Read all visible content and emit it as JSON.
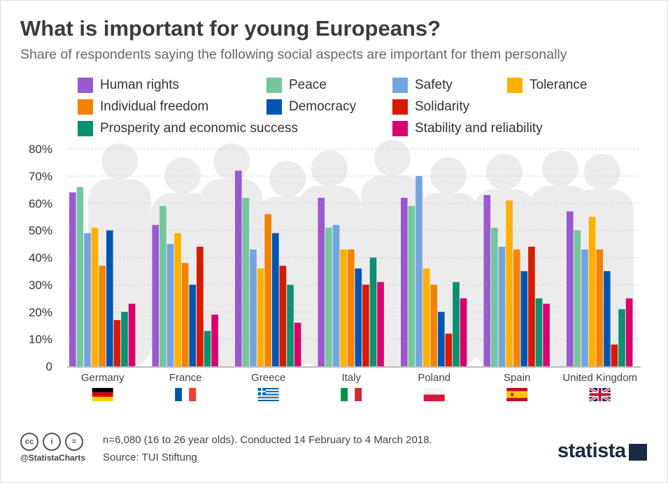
{
  "title": "What is important for young Europeans?",
  "subtitle": "Share of respondents saying the following social aspects are important for them personally",
  "chart_data": {
    "type": "bar",
    "categories": [
      "Germany",
      "France",
      "Greece",
      "Italy",
      "Poland",
      "Spain",
      "United Kingdom"
    ],
    "series": [
      {
        "name": "Human rights",
        "color": "#9b59d0",
        "values": [
          64,
          52,
          72,
          62,
          62,
          63,
          57
        ]
      },
      {
        "name": "Peace",
        "color": "#74c69d",
        "values": [
          66,
          59,
          62,
          51,
          59,
          51,
          50
        ]
      },
      {
        "name": "Safety",
        "color": "#74a4e0",
        "values": [
          49,
          45,
          43,
          52,
          70,
          44,
          43
        ]
      },
      {
        "name": "Tolerance",
        "color": "#ffb000",
        "values": [
          51,
          49,
          36,
          43,
          36,
          61,
          55
        ]
      },
      {
        "name": "Individual freedom",
        "color": "#f58300",
        "values": [
          37,
          38,
          56,
          43,
          30,
          43,
          43
        ]
      },
      {
        "name": "Democracy",
        "color": "#0055b3",
        "values": [
          50,
          30,
          49,
          36,
          20,
          35,
          35
        ]
      },
      {
        "name": "Solidarity",
        "color": "#d91a00",
        "values": [
          17,
          44,
          37,
          30,
          12,
          44,
          8
        ]
      },
      {
        "name": "Prosperity and economic success",
        "color": "#0a9170",
        "values": [
          20,
          13,
          30,
          40,
          31,
          25,
          21
        ]
      },
      {
        "name": "Stability and reliability",
        "color": "#d9006c",
        "values": [
          23,
          19,
          16,
          31,
          25,
          23,
          25
        ]
      }
    ],
    "yticks": [
      "0",
      "10%",
      "20%",
      "30%",
      "40%",
      "50%",
      "60%",
      "70%",
      "80%"
    ],
    "ylim": [
      0,
      80
    ],
    "grid": true,
    "legend": "top",
    "flags": [
      "germany-flag",
      "france-flag",
      "greece-flag",
      "italy-flag",
      "poland-flag",
      "spain-flag",
      "uk-flag"
    ]
  },
  "footer": {
    "note": "n=6,080 (16 to 26 year olds). Conducted 14 February to 4 March 2018.",
    "source": "Source: TUI Stiftung",
    "handle": "@StatistaCharts",
    "logo": "statista",
    "cc": [
      "cc",
      "i",
      "="
    ]
  }
}
